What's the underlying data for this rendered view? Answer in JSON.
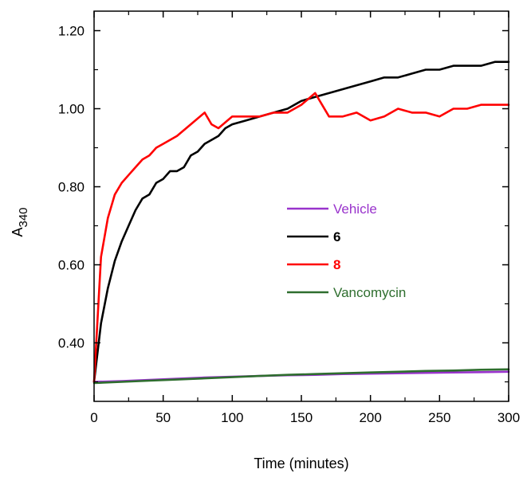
{
  "chart_data": {
    "type": "line",
    "xlabel": "Time (minutes)",
    "ylabel": "A",
    "ylabel_subscript": "340",
    "xlim": [
      0,
      300
    ],
    "ylim": [
      0.25,
      1.25
    ],
    "xticks": [
      {
        "value": 0,
        "label": "0"
      },
      {
        "value": 50,
        "label": "50"
      },
      {
        "value": 100,
        "label": "100"
      },
      {
        "value": 150,
        "label": "150"
      },
      {
        "value": 200,
        "label": "200"
      },
      {
        "value": 250,
        "label": "250"
      },
      {
        "value": 300,
        "label": "300"
      }
    ],
    "yticks": [
      {
        "value": 0.4,
        "label": "0.40"
      },
      {
        "value": 0.6,
        "label": "0.60"
      },
      {
        "value": 0.8,
        "label": "0.80"
      },
      {
        "value": 1.0,
        "label": "1.00"
      },
      {
        "value": 1.2,
        "label": "1.20"
      }
    ],
    "grid": false,
    "legend_position": "center-right",
    "series": [
      {
        "name": "Vehicle",
        "color": "#9933cc",
        "label_bold": false,
        "x": [
          0,
          20,
          40,
          60,
          80,
          100,
          120,
          140,
          160,
          180,
          200,
          220,
          240,
          260,
          280,
          300
        ],
        "y": [
          0.3,
          0.302,
          0.305,
          0.308,
          0.311,
          0.313,
          0.315,
          0.317,
          0.318,
          0.32,
          0.321,
          0.322,
          0.323,
          0.324,
          0.325,
          0.326
        ]
      },
      {
        "name": "6",
        "color": "#000000",
        "label_bold": true,
        "x": [
          0,
          5,
          10,
          15,
          20,
          25,
          30,
          35,
          40,
          45,
          50,
          55,
          60,
          65,
          70,
          75,
          80,
          85,
          90,
          95,
          100,
          110,
          120,
          130,
          140,
          150,
          160,
          170,
          180,
          190,
          200,
          210,
          220,
          230,
          240,
          250,
          260,
          270,
          280,
          290,
          300
        ],
        "y": [
          0.3,
          0.45,
          0.54,
          0.61,
          0.66,
          0.7,
          0.74,
          0.77,
          0.78,
          0.81,
          0.82,
          0.84,
          0.84,
          0.85,
          0.88,
          0.89,
          0.91,
          0.92,
          0.93,
          0.95,
          0.96,
          0.97,
          0.98,
          0.99,
          1.0,
          1.02,
          1.03,
          1.04,
          1.05,
          1.06,
          1.07,
          1.08,
          1.08,
          1.09,
          1.1,
          1.1,
          1.11,
          1.11,
          1.11,
          1.12,
          1.12
        ]
      },
      {
        "name": "8",
        "color": "#ff0000",
        "label_bold": true,
        "x": [
          0,
          5,
          10,
          15,
          20,
          25,
          30,
          35,
          40,
          45,
          50,
          60,
          70,
          80,
          85,
          90,
          100,
          110,
          120,
          130,
          140,
          150,
          160,
          170,
          175,
          180,
          190,
          200,
          210,
          220,
          230,
          240,
          250,
          260,
          270,
          280,
          290,
          300
        ],
        "y": [
          0.3,
          0.62,
          0.72,
          0.78,
          0.81,
          0.83,
          0.85,
          0.87,
          0.88,
          0.9,
          0.91,
          0.93,
          0.96,
          0.99,
          0.96,
          0.95,
          0.98,
          0.98,
          0.98,
          0.99,
          0.99,
          1.01,
          1.04,
          0.98,
          0.98,
          0.98,
          0.99,
          0.97,
          0.98,
          1.0,
          0.99,
          0.99,
          0.98,
          1.0,
          1.0,
          1.01,
          1.01,
          1.01
        ]
      },
      {
        "name": "Vancomycin",
        "color": "#2e6e2e",
        "label_bold": false,
        "x": [
          0,
          20,
          40,
          60,
          80,
          100,
          120,
          140,
          160,
          180,
          200,
          220,
          240,
          260,
          280,
          300
        ],
        "y": [
          0.297,
          0.3,
          0.303,
          0.306,
          0.309,
          0.312,
          0.315,
          0.318,
          0.32,
          0.322,
          0.324,
          0.326,
          0.328,
          0.329,
          0.331,
          0.332
        ]
      }
    ]
  }
}
